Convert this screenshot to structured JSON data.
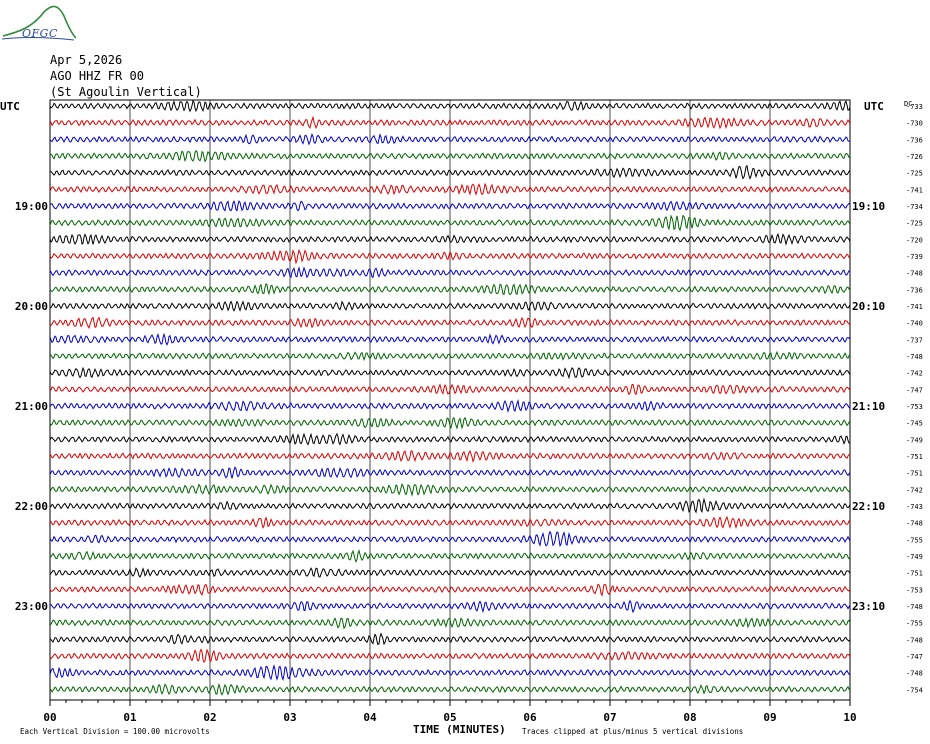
{
  "header": {
    "logo_text": "OFGC",
    "date": "Apr 5,2026",
    "station": "AGO HHZ FR 00",
    "description": "(St Agoulin Vertical)"
  },
  "chart_data": {
    "type": "line",
    "subtype": "helicorder",
    "left_time_label": "UTC",
    "right_time_label": "UTC",
    "dc_label": "DC",
    "trace_colors": [
      "#000000",
      "#dd0000",
      "#0000cc",
      "#006600"
    ],
    "grid": true,
    "x_axis": {
      "label": "TIME (MINUTES)",
      "range": [
        0,
        10
      ],
      "ticks": [
        "00",
        "01",
        "02",
        "03",
        "04",
        "05",
        "06",
        "07",
        "08",
        "09",
        "10"
      ]
    },
    "left_hour_labels": [
      {
        "row": 6,
        "text": "19:00"
      },
      {
        "row": 12,
        "text": "20:00"
      },
      {
        "row": 18,
        "text": "21:00"
      },
      {
        "row": 24,
        "text": "22:00"
      },
      {
        "row": 30,
        "text": "23:00"
      }
    ],
    "right_hour_labels": [
      {
        "row": 6,
        "text": "19:10"
      },
      {
        "row": 12,
        "text": "20:10"
      },
      {
        "row": 18,
        "text": "21:10"
      },
      {
        "row": 24,
        "text": "22:10"
      },
      {
        "row": 30,
        "text": "23:10"
      }
    ],
    "dc_offsets": [
      -733,
      -730,
      -736,
      -726,
      -725,
      -741,
      -734,
      -725,
      -720,
      -739,
      -748,
      -736,
      -741,
      -740,
      -737,
      -748,
      -742,
      -747,
      -753,
      -745,
      -749,
      -751,
      -751,
      -742,
      -743,
      -748,
      -755,
      -749,
      -751,
      -753,
      -748,
      -755,
      -748,
      -747,
      -748,
      -754
    ],
    "footer": {
      "scale": "Each Vertical Division =  100.00 microvolts",
      "clip_note": "Traces clipped at plus/minus 5 vertical divisions"
    }
  }
}
